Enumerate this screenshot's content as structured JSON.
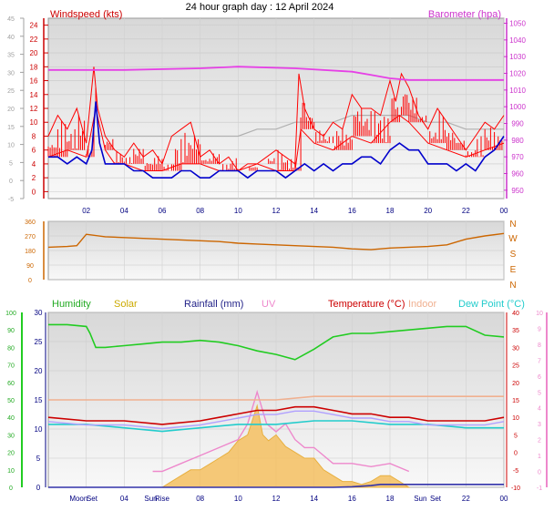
{
  "title": "24 hour graph day : 12 April 2024",
  "chart_data": [
    {
      "type": "line",
      "id": "wind_baro",
      "legend": {
        "windspeed": "Windspeed (kts)",
        "barometer": "Barometer (hpa)"
      },
      "x_tick_labels": [
        "02",
        "04",
        "06",
        "08",
        "10",
        "12",
        "14",
        "16",
        "18",
        "20",
        "22",
        "00"
      ],
      "x_range_hours": [
        0,
        24
      ],
      "y_left_ticks": [
        0,
        2,
        4,
        6,
        8,
        10,
        12,
        14,
        16,
        18,
        20,
        22,
        24
      ],
      "y_left_range": [
        -1,
        25
      ],
      "y_outer_ticks": [
        -5,
        0,
        5,
        10,
        15,
        20,
        25,
        30,
        35,
        40,
        45
      ],
      "y_right_ticks": [
        950,
        960,
        970,
        980,
        990,
        1000,
        1010,
        1020,
        1030,
        1040,
        1050
      ],
      "y_right_range": [
        945,
        1053
      ],
      "series": [
        {
          "name": "Barometer (hpa)",
          "color": "#e640e6",
          "x": [
            0,
            4,
            8,
            10,
            13,
            16,
            17,
            18,
            19,
            20,
            22,
            24
          ],
          "values": [
            1022,
            1022,
            1023,
            1024,
            1023,
            1021,
            1019,
            1017,
            1016,
            1016,
            1016,
            1016
          ]
        },
        {
          "name": "gust",
          "color": "#ff0000",
          "x": [
            0,
            0.5,
            1,
            1.5,
            2,
            2.4,
            2.6,
            3,
            3.5,
            4,
            4.5,
            5,
            5.5,
            6,
            6.5,
            7,
            7.5,
            8,
            8.5,
            9,
            9.5,
            10,
            10.5,
            11,
            11.5,
            12,
            12.5,
            13,
            13.2,
            13.5,
            14,
            14.5,
            15,
            15.5,
            16,
            16.5,
            17,
            17.5,
            18,
            18.3,
            18.6,
            19,
            19.5,
            20,
            20.5,
            21,
            21.5,
            22,
            22.5,
            23,
            23.5,
            24
          ],
          "values": [
            8,
            11,
            9,
            12,
            7,
            18,
            12,
            8,
            6,
            5,
            7,
            5,
            6,
            4,
            8,
            9,
            10,
            5,
            6,
            4,
            5,
            3,
            4,
            4,
            5,
            6,
            5,
            4,
            17,
            12,
            9,
            8,
            10,
            9,
            14,
            12,
            12,
            11,
            16,
            13,
            17,
            15,
            11,
            9,
            12,
            10,
            8,
            6,
            8,
            10,
            9,
            11
          ]
        },
        {
          "name": "average",
          "color": "#ff0000",
          "x": [
            0,
            1,
            2,
            2.5,
            3,
            3.5,
            4,
            5,
            6,
            7,
            8,
            9,
            10,
            11,
            12,
            13,
            13.3,
            14,
            15,
            16,
            17,
            18,
            18.5,
            19,
            20,
            21,
            22,
            23,
            24
          ],
          "values": [
            5,
            6,
            5,
            12,
            6,
            4,
            4,
            3,
            3,
            4,
            4,
            3,
            3,
            4,
            3,
            3,
            9,
            7,
            6,
            8,
            7,
            10,
            11,
            10,
            7,
            6,
            5,
            6,
            7
          ]
        },
        {
          "name": "wind_avg_blue",
          "color": "#0000cc",
          "x": [
            0,
            0.5,
            1,
            1.5,
            2,
            2.3,
            2.5,
            2.7,
            3,
            3.5,
            4,
            4.5,
            5,
            5.5,
            6,
            6.5,
            7,
            7.5,
            8,
            8.5,
            9,
            9.5,
            10,
            10.5,
            11,
            11.5,
            12,
            12.5,
            13,
            13.5,
            14,
            14.5,
            15,
            15.5,
            16,
            16.5,
            17,
            17.5,
            18,
            18.5,
            19,
            19.5,
            20,
            20.5,
            21,
            21.5,
            22,
            22.5,
            23,
            23.5,
            24
          ],
          "values": [
            5,
            5,
            4,
            5,
            4,
            6,
            13,
            7,
            4,
            4,
            4,
            3,
            3,
            2,
            2,
            2,
            3,
            3,
            2,
            2,
            3,
            3,
            3,
            2,
            3,
            3,
            3,
            2,
            3,
            4,
            3,
            4,
            3,
            4,
            4,
            5,
            5,
            4,
            6,
            7,
            6,
            6,
            4,
            4,
            4,
            3,
            4,
            3,
            5,
            6,
            8
          ]
        },
        {
          "name": "wind_dir_grey",
          "color": "#b0b0b0",
          "x": [
            0,
            2,
            4,
            6,
            8,
            10,
            11,
            12,
            13,
            14,
            15,
            16,
            17,
            18,
            19,
            20,
            21,
            22,
            23,
            24
          ],
          "values": [
            8,
            8,
            8,
            8,
            8,
            8,
            9,
            9,
            10,
            10,
            10,
            11,
            11,
            11,
            11,
            10,
            10,
            9,
            9,
            9
          ]
        }
      ]
    },
    {
      "type": "line",
      "id": "wind_direction",
      "y_left_ticks": [
        0,
        90,
        180,
        270,
        360
      ],
      "y_right_labels": [
        "N",
        "E",
        "S",
        "W",
        "N"
      ],
      "y_range": [
        0,
        360
      ],
      "series": [
        {
          "name": "direction",
          "color": "#cc6600",
          "x": [
            0,
            1,
            1.5,
            2,
            3,
            4,
            5,
            6,
            7,
            8,
            9,
            10,
            11,
            12,
            13,
            14,
            15,
            16,
            17,
            18,
            19,
            20,
            21,
            22,
            23,
            24
          ],
          "values": [
            200,
            205,
            210,
            280,
            265,
            260,
            255,
            250,
            245,
            240,
            235,
            225,
            220,
            215,
            210,
            205,
            200,
            190,
            185,
            195,
            200,
            205,
            215,
            250,
            270,
            285
          ]
        }
      ]
    },
    {
      "type": "line",
      "id": "humidity_temp",
      "legend": {
        "humidity": "Humidity",
        "solar": "Solar",
        "rainfall": "Rainfall (mm)",
        "uv": "UV",
        "temperature": "Temperature (°C)",
        "indoor": "Indoor",
        "dewpoint": "Dew Point (°C)"
      },
      "x_tick_labels": [
        "Moon",
        "Set",
        "04",
        "Sun",
        "Rise",
        "08",
        "10",
        "12",
        "14",
        "16",
        "18",
        "Sun",
        "Set",
        "22",
        "00"
      ],
      "y_humidity_ticks": [
        0,
        10,
        20,
        30,
        40,
        50,
        60,
        70,
        80,
        90,
        100
      ],
      "y_rain_ticks": [
        0,
        5,
        10,
        15,
        20,
        25,
        30
      ],
      "y_temp_ticks": [
        -10,
        -5,
        0,
        5,
        10,
        15,
        20,
        25,
        30,
        35,
        40
      ],
      "y_uv_ticks": [
        -1,
        0,
        1,
        2,
        3,
        4,
        5,
        6,
        7,
        8,
        9,
        10
      ],
      "series": [
        {
          "name": "Humidity",
          "color": "#22cc22",
          "x": [
            0,
            1,
            2,
            2.2,
            2.5,
            3,
            4,
            5,
            6,
            7,
            8,
            9,
            10,
            11,
            12,
            13,
            14,
            15,
            16,
            17,
            18,
            19,
            20,
            21,
            22,
            23,
            24
          ],
          "values": [
            93,
            93,
            92,
            88,
            80,
            80,
            81,
            82,
            83,
            83,
            84,
            83,
            81,
            78,
            76,
            73,
            79,
            86,
            88,
            88,
            89,
            90,
            91,
            92,
            92,
            87,
            86
          ]
        },
        {
          "name": "Temperature (°C)",
          "color": "#cc0000",
          "x": [
            0,
            2,
            4,
            6,
            8,
            9,
            10,
            11,
            12,
            13,
            14,
            15,
            16,
            17,
            18,
            19,
            20,
            21,
            22,
            23,
            24
          ],
          "values": [
            10,
            9,
            9,
            8,
            9,
            10,
            11,
            12,
            12,
            13,
            13,
            12,
            11,
            11,
            10,
            10,
            9,
            9,
            9,
            9,
            10
          ]
        },
        {
          "name": "Indoor",
          "color": "#f0b090",
          "x": [
            0,
            2,
            4,
            6,
            8,
            10,
            12,
            14,
            16,
            18,
            20,
            22,
            24
          ],
          "values": [
            15,
            15,
            15,
            15,
            15,
            15,
            15,
            16,
            16,
            16,
            16,
            16,
            16
          ]
        },
        {
          "name": "Dew Point (°C)",
          "color": "#22cccc",
          "x": [
            0,
            2,
            4,
            6,
            8,
            10,
            12,
            14,
            16,
            18,
            20,
            22,
            24
          ],
          "values": [
            8,
            8,
            7,
            6,
            7,
            8,
            8,
            9,
            9,
            8,
            8,
            7,
            7
          ]
        },
        {
          "name": "Rainfall (mm)",
          "color": "#3333aa",
          "x": [
            0,
            15,
            16,
            17,
            17.5,
            18,
            20,
            22,
            24
          ],
          "values": [
            0,
            0,
            0.1,
            0.3,
            0.5,
            0.5,
            0.5,
            0.5,
            0.5
          ]
        },
        {
          "name": "Solar",
          "color": "#e8b040",
          "type": "area",
          "x": [
            5.5,
            6,
            6.5,
            7,
            7.5,
            8,
            8.5,
            9,
            9.5,
            10,
            10.5,
            11,
            11.3,
            11.6,
            12,
            12.5,
            13,
            13.5,
            14,
            14.5,
            15,
            15.5,
            16,
            16.5,
            17,
            17.5,
            18,
            18.5,
            19
          ],
          "values": [
            0,
            0,
            1,
            2,
            3,
            3,
            4,
            5,
            6,
            8,
            9,
            14,
            9,
            8,
            9,
            7,
            6,
            5,
            5,
            3,
            2,
            1,
            1,
            0.5,
            1,
            2,
            2,
            1,
            0
          ]
        },
        {
          "name": "UV",
          "color": "#ee88cc",
          "x": [
            5.5,
            6,
            7,
            8,
            9,
            10,
            10.5,
            11,
            11.5,
            12,
            12.5,
            13,
            13.5,
            14,
            15,
            16,
            17,
            18,
            19
          ],
          "values": [
            0,
            0,
            0.5,
            1,
            1.5,
            2,
            3,
            5,
            3,
            2.5,
            3,
            2,
            1.5,
            1.5,
            0.5,
            0.5,
            0.3,
            0.5,
            0
          ]
        }
      ]
    }
  ]
}
